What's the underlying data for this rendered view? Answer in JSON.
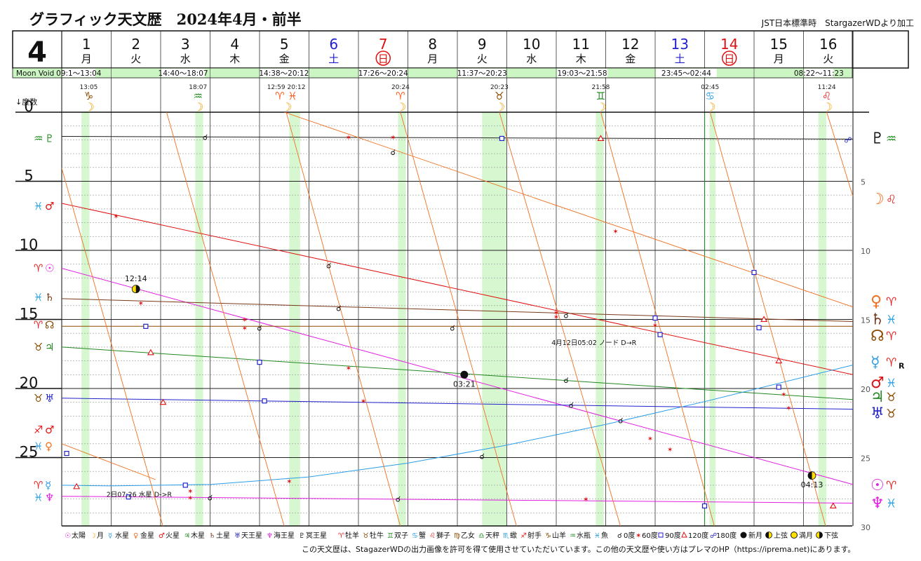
{
  "header": {
    "title": "グラフィック天文歴　2024年4月・前半",
    "credit": "JST日本標準時　StargazerWDより加工",
    "month": "4",
    "moon_void_label": "Moon Void"
  },
  "days": [
    {
      "num": "1",
      "wd": "月",
      "type": "weekday"
    },
    {
      "num": "2",
      "wd": "火",
      "type": "weekday"
    },
    {
      "num": "3",
      "wd": "水",
      "type": "weekday"
    },
    {
      "num": "4",
      "wd": "木",
      "type": "weekday"
    },
    {
      "num": "5",
      "wd": "金",
      "type": "weekday"
    },
    {
      "num": "6",
      "wd": "土",
      "type": "sat"
    },
    {
      "num": "7",
      "wd": "日",
      "type": "sun"
    },
    {
      "num": "8",
      "wd": "月",
      "type": "weekday"
    },
    {
      "num": "9",
      "wd": "火",
      "type": "weekday"
    },
    {
      "num": "10",
      "wd": "水",
      "type": "weekday"
    },
    {
      "num": "11",
      "wd": "木",
      "type": "weekday"
    },
    {
      "num": "12",
      "wd": "金",
      "type": "weekday"
    },
    {
      "num": "13",
      "wd": "土",
      "type": "sat"
    },
    {
      "num": "14",
      "wd": "日",
      "type": "sun"
    },
    {
      "num": "15",
      "wd": "月",
      "type": "weekday"
    },
    {
      "num": "16",
      "wd": "火",
      "type": "weekday"
    }
  ],
  "moon_void": [
    {
      "start_day": 1.0,
      "end_day": 1.54,
      "label": "09:1〜13:04"
    },
    {
      "start_day": 3.0,
      "end_day": 3.76,
      "label": "14:40〜18:07"
    },
    {
      "start_day": 5.0,
      "end_day": 5.84,
      "label": "14:38〜20:12"
    },
    {
      "start_day": 7.0,
      "end_day": 7.85,
      "label": "17:26〜20:24"
    },
    {
      "start_day": 9.0,
      "end_day": 9.85,
      "label": "11:37〜20:23"
    },
    {
      "start_day": 11.0,
      "end_day": 11.9,
      "label": "19:03〜21:58"
    },
    {
      "start_day": 13.0,
      "end_day": 14.11,
      "label": "23:45〜02:44"
    },
    {
      "start_day": 16.0,
      "end_day": 16.47,
      "label": "08:22〜11:23"
    }
  ],
  "moon_ingress": [
    {
      "day": 1.545,
      "time": "13:05",
      "sign_glyph": "♑",
      "sign_color": "#8b4a00"
    },
    {
      "day": 3.755,
      "time": "18:07",
      "sign_glyph": "♒",
      "sign_color": "#1d8a1d"
    },
    {
      "day": 5.54,
      "time": "12:59 20:12",
      "sign_glyph": "♈ ♓",
      "sign_color": "#ff5a1f",
      "extra": "venus-pisces"
    },
    {
      "day": 7.85,
      "time": "20:24",
      "sign_glyph": "♈",
      "sign_color": "#ff5a1f"
    },
    {
      "day": 9.85,
      "time": "20:23",
      "sign_glyph": "♉",
      "sign_color": "#8b4a00"
    },
    {
      "day": 11.9,
      "time": "21:58",
      "sign_glyph": "♊",
      "sign_color": "#1d8a1d"
    },
    {
      "day": 14.11,
      "time": "02:45",
      "sign_glyph": "♋",
      "sign_color": "#2aa0e0"
    },
    {
      "day": 16.47,
      "time": "11:24",
      "sign_glyph": "♌",
      "sign_color": "#e52121"
    }
  ],
  "chart_data": {
    "type": "line",
    "title": "グラフィック天文歴　2024年4月・前半",
    "xlabel": "",
    "ylabel": "↓度数",
    "xlim": [
      1,
      17
    ],
    "ylim": [
      0,
      30
    ],
    "y_left_ticks": [
      0,
      5,
      10,
      15,
      20,
      25
    ],
    "y_right_ticks": [
      5,
      10,
      15,
      20,
      25,
      30
    ],
    "grid": true,
    "series": [
      {
        "key": "pluto",
        "color": "#222222",
        "points": [
          [
            1,
            1.75
          ],
          [
            17,
            1.95
          ]
        ]
      },
      {
        "key": "mars",
        "color": "#e01010",
        "points": [
          [
            1,
            6.6
          ],
          [
            17,
            19.0
          ]
        ]
      },
      {
        "key": "sun",
        "color": "#e020e0",
        "points": [
          [
            1,
            11.3
          ],
          [
            17,
            26.95
          ]
        ]
      },
      {
        "key": "saturn",
        "color": "#7a3a1a",
        "points": [
          [
            1,
            13.5
          ],
          [
            17,
            15.15
          ]
        ]
      },
      {
        "key": "node",
        "color": "#8b4a00",
        "points": [
          [
            1,
            15.5
          ],
          [
            17,
            15.5
          ]
        ]
      },
      {
        "key": "jupiter",
        "color": "#228822",
        "points": [
          [
            1,
            17.0
          ],
          [
            17,
            20.8
          ]
        ]
      },
      {
        "key": "uranus",
        "color": "#2222cc",
        "points": [
          [
            1,
            20.7
          ],
          [
            17,
            21.5
          ]
        ]
      },
      {
        "key": "neptune",
        "color": "#e020e0",
        "points": [
          [
            1,
            27.8
          ],
          [
            17,
            28.3
          ]
        ]
      },
      {
        "key": "mercury",
        "color": "#2a9de8",
        "points": [
          [
            1,
            27.0
          ],
          [
            2,
            27.05
          ],
          [
            4,
            26.95
          ],
          [
            6,
            26.4
          ],
          [
            8,
            25.4
          ],
          [
            10,
            24.1
          ],
          [
            12,
            22.6
          ],
          [
            14,
            20.95
          ],
          [
            17,
            18.3
          ]
        ]
      },
      {
        "key": "venus_1",
        "color": "#f07020",
        "points": [
          [
            1,
            24.0
          ],
          [
            2.9,
            26.6
          ]
        ]
      },
      {
        "key": "venus_2",
        "color": "#f07020",
        "points": [
          [
            5.5,
            0
          ],
          [
            17,
            14.1
          ]
        ]
      },
      {
        "key": "moon_1",
        "color": "#f07020",
        "points": [
          [
            0.68,
            0
          ],
          [
            3.05,
            30
          ]
        ]
      },
      {
        "key": "moon_2",
        "color": "#f07020",
        "points": [
          [
            3.12,
            0
          ],
          [
            5.5,
            30
          ]
        ]
      },
      {
        "key": "moon_3",
        "color": "#f07020",
        "points": [
          [
            5.54,
            0
          ],
          [
            7.85,
            30
          ]
        ]
      },
      {
        "key": "moon_4",
        "color": "#f07020",
        "points": [
          [
            7.85,
            0
          ],
          [
            10.2,
            30
          ]
        ]
      },
      {
        "key": "moon_5",
        "color": "#f07020",
        "points": [
          [
            9.85,
            0
          ],
          [
            12.3,
            30
          ]
        ]
      },
      {
        "key": "moon_6",
        "color": "#f07020",
        "points": [
          [
            11.9,
            0
          ],
          [
            14.2,
            30
          ]
        ]
      },
      {
        "key": "moon_7",
        "color": "#f07020",
        "points": [
          [
            14.11,
            0
          ],
          [
            16.45,
            30
          ]
        ]
      },
      {
        "key": "moon_8",
        "color": "#f07020",
        "points": [
          [
            16.47,
            0
          ],
          [
            17,
            6.1
          ]
        ]
      }
    ],
    "left_planet_labels": [
      {
        "y": 1.9,
        "sign": "♒",
        "sign_color": "#1d8a1d",
        "planet": "♇",
        "planet_color": "#1d8a1d"
      },
      {
        "y": 6.8,
        "sign": "♓",
        "sign_color": "#2aa0e0",
        "planet": "♂",
        "planet_color": "#e01010"
      },
      {
        "y": 11.3,
        "sign": "♈",
        "sign_color": "#e52121",
        "planet": "☉",
        "planet_color": "#e020e0"
      },
      {
        "y": 13.4,
        "sign": "♓",
        "sign_color": "#2aa0e0",
        "planet": "♄",
        "planet_color": "#7a3a1a"
      },
      {
        "y": 15.4,
        "sign": "♈",
        "sign_color": "#e52121",
        "planet": "☊",
        "planet_color": "#8b4a00"
      },
      {
        "y": 17.0,
        "sign": "♉",
        "sign_color": "#8b4a00",
        "planet": "♃",
        "planet_color": "#228822"
      },
      {
        "y": 20.7,
        "sign": "♉",
        "sign_color": "#8b4a00",
        "planet": "♅",
        "planet_color": "#2222cc"
      },
      {
        "y": 23.0,
        "sign": "♐",
        "sign_color": "#e52121",
        "planet": "♂",
        "planet_color": "#e01010"
      },
      {
        "y": 24.2,
        "sign": "♓",
        "sign_color": "#2aa0e0",
        "planet": "♀",
        "planet_color": "#f07020"
      },
      {
        "y": 27.0,
        "sign": "♈",
        "sign_color": "#e52121",
        "planet": "☿",
        "planet_color": "#2a9de8"
      },
      {
        "y": 27.9,
        "sign": "♓",
        "sign_color": "#2aa0e0",
        "planet": "♆",
        "planet_color": "#e020e0"
      }
    ],
    "right_planet_labels": [
      {
        "y": 1.9,
        "planet": "♇",
        "planet_color": "#111111",
        "sign": "♒",
        "sign_color": "#1d8a1d"
      },
      {
        "y": 6.3,
        "planet": "☽",
        "planet_color": "#f07020",
        "sign": "♌",
        "sign_color": "#e52121"
      },
      {
        "y": 13.7,
        "planet": "♀",
        "planet_color": "#f07020",
        "sign": "♈",
        "sign_color": "#e52121"
      },
      {
        "y": 15.0,
        "planet": "♄",
        "planet_color": "#7a3a1a",
        "sign": "♓",
        "sign_color": "#2aa0e0"
      },
      {
        "y": 16.2,
        "planet": "☊",
        "planet_color": "#8b4a00",
        "sign": "♈",
        "sign_color": "#e52121"
      },
      {
        "y": 18.1,
        "planet": "☿",
        "planet_color": "#2a9de8",
        "sign": "♈",
        "sign_color": "#e52121",
        "retro": "R"
      },
      {
        "y": 19.6,
        "planet": "♂",
        "planet_color": "#e01010",
        "sign": "♓",
        "sign_color": "#2aa0e0"
      },
      {
        "y": 20.6,
        "planet": "♃",
        "planet_color": "#228822",
        "sign": "♉",
        "sign_color": "#8b4a00"
      },
      {
        "y": 21.8,
        "planet": "♅",
        "planet_color": "#2222cc",
        "sign": "♉",
        "sign_color": "#8b4a00"
      },
      {
        "y": 27.0,
        "planet": "☉",
        "planet_color": "#e020e0",
        "sign": "♈",
        "sign_color": "#e52121"
      },
      {
        "y": 28.3,
        "planet": "♆",
        "planet_color": "#e020e0",
        "sign": "♓",
        "sign_color": "#2aa0e0"
      }
    ],
    "lunar_phases": [
      {
        "day": 2.5,
        "y": 12.8,
        "phase": "last_quarter",
        "time": "12:14",
        "label_pos": "above"
      },
      {
        "day": 9.14,
        "y": 19.0,
        "phase": "new_moon",
        "time": "03:21",
        "label_pos": "below"
      },
      {
        "day": 16.17,
        "y": 26.3,
        "phase": "first_quarter",
        "time": "04:13",
        "label_pos": "below"
      }
    ],
    "annotations": [
      {
        "day": 2.5,
        "y": 27.7,
        "text": "2日07:26 水星 D->R"
      },
      {
        "day": 11.5,
        "y": 16.7,
        "text": "4月12日05:02 ノード D→R"
      }
    ],
    "aspect_marks": [
      {
        "day": 3.9,
        "y": 1.8,
        "kind": "conj"
      },
      {
        "day": 7.7,
        "y": 2.9,
        "kind": "conj"
      },
      {
        "day": 5.0,
        "y": 15.6,
        "kind": "conj"
      },
      {
        "day": 6.4,
        "y": 11.1,
        "kind": "conj"
      },
      {
        "day": 6.6,
        "y": 14.2,
        "kind": "conj"
      },
      {
        "day": 8.9,
        "y": 15.6,
        "kind": "conj"
      },
      {
        "day": 11.2,
        "y": 14.7,
        "kind": "conj"
      },
      {
        "day": 11.2,
        "y": 19.4,
        "kind": "conj"
      },
      {
        "day": 11.3,
        "y": 21.2,
        "kind": "conj"
      },
      {
        "day": 12.3,
        "y": 22.3,
        "kind": "conj"
      },
      {
        "day": 9.5,
        "y": 24.9,
        "kind": "conj"
      },
      {
        "day": 7.8,
        "y": 28.0,
        "kind": "conj"
      },
      {
        "day": 4.0,
        "y": 27.9,
        "kind": "conj"
      },
      {
        "day": 2.1,
        "y": 7.5,
        "kind": "sextile"
      },
      {
        "day": 6.8,
        "y": 1.8,
        "kind": "sextile"
      },
      {
        "day": 7.7,
        "y": 1.8,
        "kind": "sextile"
      },
      {
        "day": 2.6,
        "y": 13.8,
        "kind": "sextile"
      },
      {
        "day": 4.7,
        "y": 15.0,
        "kind": "sextile"
      },
      {
        "day": 4.7,
        "y": 15.6,
        "kind": "sextile"
      },
      {
        "day": 6.8,
        "y": 18.5,
        "kind": "sextile"
      },
      {
        "day": 7.1,
        "y": 20.9,
        "kind": "sextile"
      },
      {
        "day": 11.0,
        "y": 14.5,
        "kind": "sextile"
      },
      {
        "day": 11.0,
        "y": 14.8,
        "kind": "sextile"
      },
      {
        "day": 12.2,
        "y": 8.6,
        "kind": "sextile"
      },
      {
        "day": 13.0,
        "y": 15.4,
        "kind": "sextile"
      },
      {
        "day": 15.6,
        "y": 20.4,
        "kind": "sextile"
      },
      {
        "day": 15.7,
        "y": 21.4,
        "kind": "sextile"
      },
      {
        "day": 12.9,
        "y": 23.6,
        "kind": "sextile"
      },
      {
        "day": 13.3,
        "y": 24.4,
        "kind": "sextile"
      },
      {
        "day": 3.6,
        "y": 27.4,
        "kind": "sextile"
      },
      {
        "day": 3.6,
        "y": 27.9,
        "kind": "sextile"
      },
      {
        "day": 11.6,
        "y": 28.0,
        "kind": "sextile"
      },
      {
        "day": 5.6,
        "y": 26.7,
        "kind": "sextile"
      },
      {
        "day": 9.9,
        "y": 1.9,
        "kind": "square"
      },
      {
        "day": 2.7,
        "y": 15.5,
        "kind": "square"
      },
      {
        "day": 5.0,
        "y": 18.1,
        "kind": "square"
      },
      {
        "day": 5.1,
        "y": 20.9,
        "kind": "square"
      },
      {
        "day": 13.0,
        "y": 14.9,
        "kind": "square"
      },
      {
        "day": 13.1,
        "y": 16.1,
        "kind": "square"
      },
      {
        "day": 15.0,
        "y": 11.6,
        "kind": "square"
      },
      {
        "day": 15.1,
        "y": 15.6,
        "kind": "square"
      },
      {
        "day": 15.5,
        "y": 19.9,
        "kind": "square"
      },
      {
        "day": 1.1,
        "y": 24.7,
        "kind": "square"
      },
      {
        "day": 3.5,
        "y": 27.0,
        "kind": "square"
      },
      {
        "day": 2.35,
        "y": 27.85,
        "kind": "square"
      },
      {
        "day": 14.0,
        "y": 28.5,
        "kind": "square"
      },
      {
        "day": 11.9,
        "y": 1.9,
        "kind": "trine"
      },
      {
        "day": 2.8,
        "y": 17.4,
        "kind": "trine"
      },
      {
        "day": 3.05,
        "y": 21.0,
        "kind": "trine"
      },
      {
        "day": 15.2,
        "y": 15.0,
        "kind": "trine"
      },
      {
        "day": 15.5,
        "y": 18.0,
        "kind": "trine"
      },
      {
        "day": 1.3,
        "y": 27.1,
        "kind": "trine"
      },
      {
        "day": 16.6,
        "y": 28.5,
        "kind": "trine"
      },
      {
        "day": 16.9,
        "y": 2.0,
        "kind": "opposition"
      }
    ]
  },
  "legend": {
    "planets": [
      {
        "glyph": "☉",
        "label": "太陽",
        "color": "#e020e0"
      },
      {
        "glyph": "☽",
        "label": "月",
        "color": "#f0a000"
      },
      {
        "glyph": "☿",
        "label": "水星",
        "color": "#2a9de8"
      },
      {
        "glyph": "♀",
        "label": "金星",
        "color": "#f07020"
      },
      {
        "glyph": "♂",
        "label": "火星",
        "color": "#e01010"
      },
      {
        "glyph": "♃",
        "label": "木星",
        "color": "#228822"
      },
      {
        "glyph": "♄",
        "label": "土星",
        "color": "#7a3a1a"
      },
      {
        "glyph": "♅",
        "label": "天王星",
        "color": "#2222cc"
      },
      {
        "glyph": "♆",
        "label": "海王星",
        "color": "#e020e0"
      },
      {
        "glyph": "♇",
        "label": "冥王星",
        "color": "#111111"
      }
    ],
    "signs": [
      {
        "glyph": "♈",
        "label": "牡羊",
        "color": "#e52121"
      },
      {
        "glyph": "♉",
        "label": "牡牛",
        "color": "#8b4a00"
      },
      {
        "glyph": "♊",
        "label": "双子",
        "color": "#1d8a1d"
      },
      {
        "glyph": "♋",
        "label": "蟹",
        "color": "#2aa0e0"
      },
      {
        "glyph": "♌",
        "label": "獅子",
        "color": "#e52121"
      },
      {
        "glyph": "♍",
        "label": "乙女",
        "color": "#8b4a00"
      },
      {
        "glyph": "♎",
        "label": "天秤",
        "color": "#1d8a1d"
      },
      {
        "glyph": "♏",
        "label": "蠍",
        "color": "#2aa0e0"
      },
      {
        "glyph": "♐",
        "label": "射手",
        "color": "#e52121"
      },
      {
        "glyph": "♑",
        "label": "山羊",
        "color": "#8b4a00"
      },
      {
        "glyph": "♒",
        "label": "水瓶",
        "color": "#1d8a1d"
      },
      {
        "glyph": "♓",
        "label": "魚",
        "color": "#2aa0e0"
      }
    ],
    "aspects": [
      {
        "kind": "conj",
        "label": "0度"
      },
      {
        "kind": "sextile",
        "label": "60度"
      },
      {
        "kind": "square",
        "label": "90度"
      },
      {
        "kind": "trine",
        "label": "120度"
      },
      {
        "kind": "opposition",
        "label": "180度"
      }
    ],
    "phases": [
      {
        "phase": "new_moon",
        "label": "新月"
      },
      {
        "phase": "first_quarter",
        "label": "上弦"
      },
      {
        "phase": "full_moon",
        "label": "満月"
      },
      {
        "phase": "last_quarter",
        "label": "下弦"
      }
    ]
  },
  "footer": {
    "text": "この天文歴は、StagazerWDの出力画像を許可を得て使用させていただいています。この他の天文歴や使い方はプレマのHP（https://iprema.net)にあります。"
  },
  "colors": {
    "void_green": "#ccf5c4",
    "highlight_green": "#d6f7cf",
    "sat_blue": "#2020d0",
    "sun_red": "#e01010",
    "grid": "#555555"
  }
}
